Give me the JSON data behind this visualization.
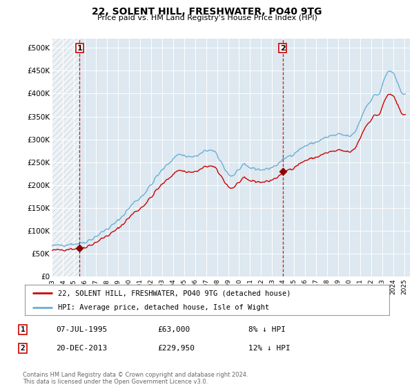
{
  "title": "22, SOLENT HILL, FRESHWATER, PO40 9TG",
  "subtitle": "Price paid vs. HM Land Registry's House Price Index (HPI)",
  "ylabel_ticks": [
    "£0",
    "£50K",
    "£100K",
    "£150K",
    "£200K",
    "£250K",
    "£300K",
    "£350K",
    "£400K",
    "£450K",
    "£500K"
  ],
  "ytick_values": [
    0,
    50000,
    100000,
    150000,
    200000,
    250000,
    300000,
    350000,
    400000,
    450000,
    500000
  ],
  "ylim": [
    0,
    520000
  ],
  "xlim_start": 1993.0,
  "xlim_end": 2025.5,
  "background_color": "#ffffff",
  "plot_bg_color": "#dde8f0",
  "hatch_color": "#c0c8d0",
  "grid_color": "#ffffff",
  "hpi_line_color": "#6aaed6",
  "price_line_color": "#cc0000",
  "marker_color": "#8b0000",
  "dashed_line_color": "#cc0000",
  "legend_line1": "22, SOLENT HILL, FRESHWATER, PO40 9TG (detached house)",
  "legend_line2": "HPI: Average price, detached house, Isle of Wight",
  "sale1_date": 1995.52,
  "sale1_price": 63000,
  "sale2_date": 2013.97,
  "sale2_price": 229950,
  "table_row1": [
    "1",
    "07-JUL-1995",
    "£63,000",
    "8% ↓ HPI"
  ],
  "table_row2": [
    "2",
    "20-DEC-2013",
    "£229,950",
    "12% ↓ HPI"
  ],
  "footer": "Contains HM Land Registry data © Crown copyright and database right 2024.\nThis data is licensed under the Open Government Licence v3.0."
}
